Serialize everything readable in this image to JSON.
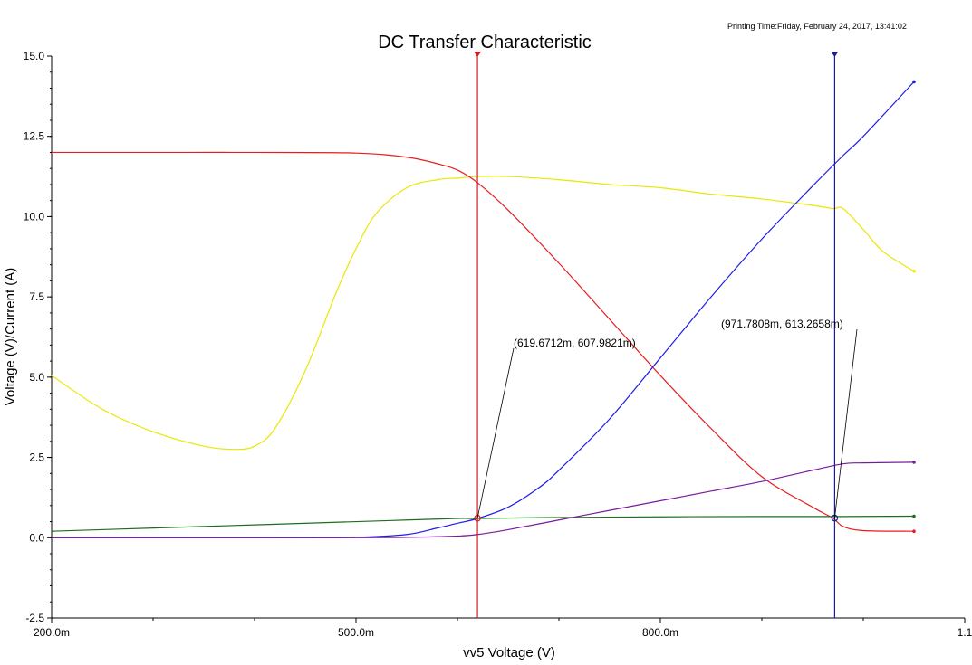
{
  "printing_time": "Printing Time:Friday, February 24, 2017, 13:41:02",
  "chart_data": {
    "type": "line",
    "title": "DC Transfer Characteristic",
    "xlabel": "vv5 Voltage (V)",
    "ylabel": "Voltage (V)/Current (A)",
    "xlim": [
      0.2,
      1.1
    ],
    "ylim": [
      -2.5,
      15.0
    ],
    "x_ticks": [
      0.2,
      0.5,
      0.8,
      1.1
    ],
    "x_tick_labels": [
      "200.0m",
      "500.0m",
      "800.0m",
      "1.1"
    ],
    "y_ticks": [
      -2.5,
      0.0,
      2.5,
      5.0,
      7.5,
      10.0,
      12.5,
      15.0
    ],
    "y_tick_labels": [
      "-2.5",
      "0.0",
      "2.5",
      "5.0",
      "7.5",
      "10.0",
      "12.5",
      "15.0"
    ],
    "grid": false,
    "series": [
      {
        "color": "#e8e800",
        "x": [
          0.2,
          0.25,
          0.3,
          0.35,
          0.38,
          0.4,
          0.42,
          0.45,
          0.48,
          0.5,
          0.52,
          0.55,
          0.58,
          0.6,
          0.62,
          0.65,
          0.7,
          0.75,
          0.8,
          0.85,
          0.9,
          0.95,
          0.97,
          0.98,
          1.0,
          1.02,
          1.05
        ],
        "y": [
          5.05,
          4.0,
          3.3,
          2.85,
          2.75,
          2.85,
          3.4,
          5.2,
          7.6,
          9.0,
          10.1,
          10.9,
          11.15,
          11.2,
          11.25,
          11.25,
          11.15,
          11.0,
          10.9,
          10.7,
          10.55,
          10.35,
          10.25,
          10.25,
          9.6,
          8.9,
          8.3
        ]
      },
      {
        "color": "#e81c1c",
        "x": [
          0.2,
          0.3,
          0.4,
          0.5,
          0.55,
          0.58,
          0.6,
          0.62,
          0.65,
          0.7,
          0.75,
          0.8,
          0.85,
          0.9,
          0.95,
          0.97,
          0.98,
          1.0,
          1.05
        ],
        "y": [
          12.0,
          12.0,
          12.0,
          11.98,
          11.85,
          11.65,
          11.45,
          11.05,
          10.2,
          8.55,
          6.8,
          5.05,
          3.4,
          1.9,
          0.95,
          0.61,
          0.35,
          0.22,
          0.2
        ]
      },
      {
        "color": "#1c1ce8",
        "x": [
          0.2,
          0.3,
          0.4,
          0.45,
          0.5,
          0.55,
          0.58,
          0.6,
          0.62,
          0.65,
          0.68,
          0.7,
          0.75,
          0.8,
          0.85,
          0.9,
          0.95,
          0.98,
          1.0,
          1.05
        ],
        "y": [
          0.0,
          0.0,
          0.0,
          0.0,
          0.01,
          0.1,
          0.3,
          0.45,
          0.6,
          0.95,
          1.55,
          2.1,
          3.7,
          5.6,
          7.5,
          9.3,
          10.95,
          11.9,
          12.5,
          14.2
        ]
      },
      {
        "color": "#1c6e1c",
        "x": [
          0.2,
          0.3,
          0.4,
          0.5,
          0.55,
          0.6,
          0.62,
          0.7,
          0.8,
          0.9,
          0.98,
          1.05
        ],
        "y": [
          0.2,
          0.3,
          0.4,
          0.5,
          0.55,
          0.6,
          0.6,
          0.63,
          0.65,
          0.66,
          0.66,
          0.67
        ]
      },
      {
        "color": "#7a1c9c",
        "x": [
          0.2,
          0.3,
          0.4,
          0.5,
          0.55,
          0.6,
          0.62,
          0.65,
          0.7,
          0.75,
          0.8,
          0.85,
          0.9,
          0.95,
          0.98,
          1.0,
          1.05
        ],
        "y": [
          0.0,
          0.0,
          0.0,
          0.0,
          0.01,
          0.05,
          0.1,
          0.25,
          0.55,
          0.85,
          1.15,
          1.45,
          1.75,
          2.1,
          2.3,
          2.33,
          2.35
        ]
      }
    ],
    "cursors": [
      {
        "x": 0.6197,
        "color": "#d41c1c",
        "label": "(619.6712m, 607.9821m)",
        "point_y": 0.608
      },
      {
        "x": 0.9718,
        "color": "#1c1c8c",
        "label": "(971.7808m, 613.2658m)",
        "point_y": 0.613
      }
    ],
    "legend_position": "bottom-left"
  }
}
